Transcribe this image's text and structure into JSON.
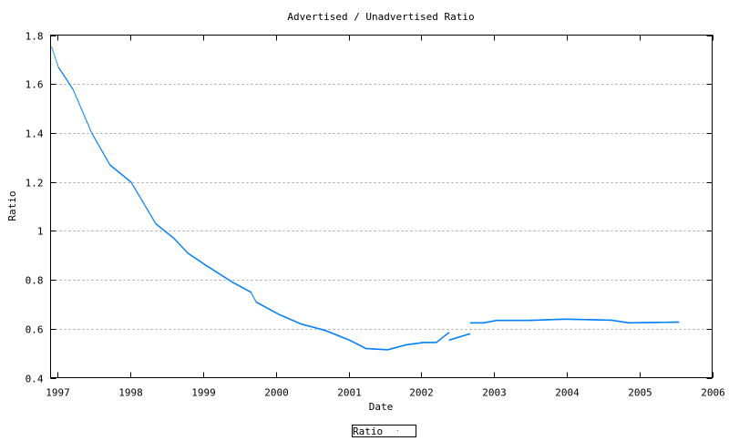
{
  "chart_data": {
    "type": "scatter",
    "title": "Advertised / Unadvertised Ratio",
    "xlabel": "Date",
    "ylabel": "Ratio",
    "xlim": [
      1996.9,
      2006
    ],
    "ylim": [
      0.4,
      1.8
    ],
    "xticks": [
      1997,
      1998,
      1999,
      2000,
      2001,
      2002,
      2003,
      2004,
      2005,
      2006
    ],
    "xtick_labels": [
      "1997",
      "1998",
      "1999",
      "2000",
      "2001",
      "2002",
      "2003",
      "2004",
      "2005",
      "2006"
    ],
    "yticks": [
      0.4,
      0.6,
      0.8,
      1.0,
      1.2,
      1.4,
      1.6,
      1.8
    ],
    "ytick_labels": [
      "0.4",
      "0.6",
      "0.8",
      "1",
      "1.2",
      "1.4",
      "1.6",
      "1.8"
    ],
    "grid": "horizontal dotted",
    "legend_position": "bottom-center",
    "series": [
      {
        "name": "Ratio",
        "color": "#0080ff",
        "segments": [
          [
            [
              1996.91,
              1.75
            ],
            [
              1997.0,
              1.67
            ],
            [
              1997.2,
              1.58
            ],
            [
              1997.46,
              1.4
            ],
            [
              1997.71,
              1.27
            ],
            [
              1998.0,
              1.2
            ],
            [
              1998.34,
              1.03
            ],
            [
              1998.59,
              0.97
            ],
            [
              1998.78,
              0.91
            ],
            [
              1999.03,
              0.86
            ],
            [
              1999.4,
              0.79
            ],
            [
              1999.65,
              0.75
            ],
            [
              1999.72,
              0.71
            ],
            [
              2000.03,
              0.66
            ],
            [
              2000.34,
              0.62
            ],
            [
              2000.66,
              0.595
            ],
            [
              2001.0,
              0.555
            ],
            [
              2001.23,
              0.52
            ],
            [
              2001.53,
              0.515
            ],
            [
              2001.78,
              0.535
            ],
            [
              2002.03,
              0.545
            ],
            [
              2002.2,
              0.545
            ],
            [
              2002.37,
              0.585
            ]
          ],
          [
            [
              2002.38,
              0.555
            ],
            [
              2002.66,
              0.58
            ]
          ],
          [
            [
              2002.67,
              0.625
            ],
            [
              2002.85,
              0.625
            ],
            [
              2003.03,
              0.635
            ],
            [
              2003.47,
              0.635
            ],
            [
              2003.97,
              0.64
            ],
            [
              2004.6,
              0.636
            ],
            [
              2004.85,
              0.625
            ],
            [
              2005.53,
              0.628
            ]
          ]
        ]
      }
    ]
  }
}
